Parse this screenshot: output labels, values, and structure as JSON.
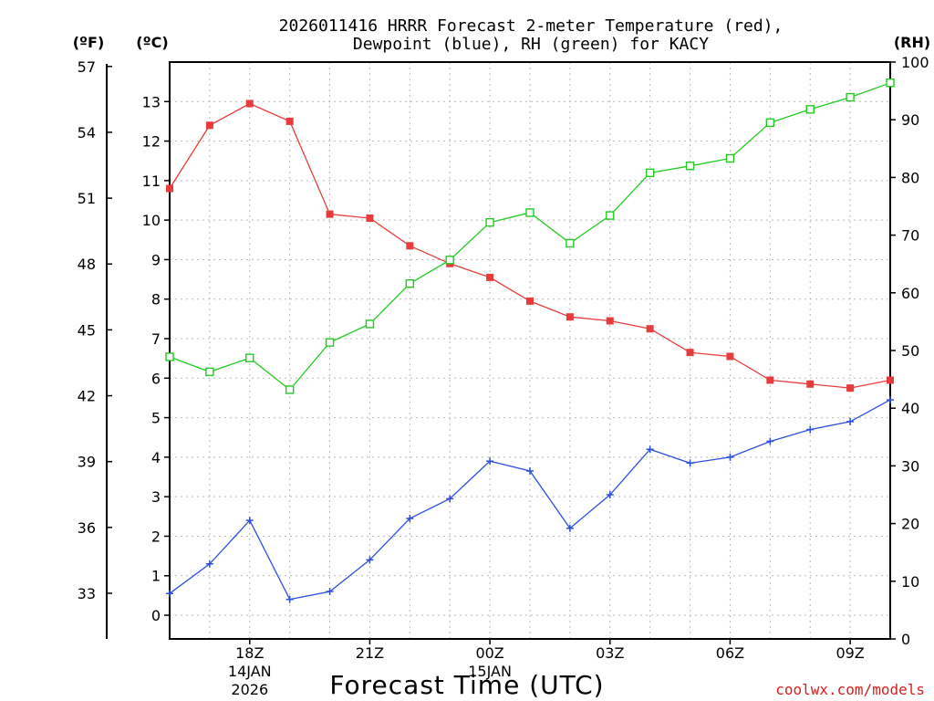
{
  "chart_data": {
    "type": "line",
    "title_line1": "2026011416 HRRR Forecast 2-meter Temperature (red),",
    "title_line2": "Dewpoint (blue), RH (green) for KACY",
    "xlabel": "Forecast Time (UTC)",
    "credit": "coolwx.com/models",
    "left_unit_f": "(ºF)",
    "left_unit_c": "(ºC)",
    "right_unit": "(RH)",
    "x_hours": [
      16,
      17,
      18,
      19,
      20,
      21,
      22,
      23,
      24,
      25,
      26,
      27,
      28,
      29,
      30,
      31,
      32,
      33,
      34
    ],
    "xlim": [
      16,
      34
    ],
    "x_ticks": [
      {
        "hour": 18,
        "label": "18Z",
        "sub1": "14JAN",
        "sub2": "2026"
      },
      {
        "hour": 21,
        "label": "21Z",
        "sub1": "",
        "sub2": ""
      },
      {
        "hour": 24,
        "label": "00Z",
        "sub1": "15JAN",
        "sub2": ""
      },
      {
        "hour": 27,
        "label": "03Z",
        "sub1": "",
        "sub2": ""
      },
      {
        "hour": 30,
        "label": "06Z",
        "sub1": "",
        "sub2": ""
      },
      {
        "hour": 33,
        "label": "09Z",
        "sub1": "",
        "sub2": ""
      }
    ],
    "celsius_axis": {
      "ylim": [
        -0.6,
        14.0
      ],
      "ticks": [
        0,
        1,
        2,
        3,
        4,
        5,
        6,
        7,
        8,
        9,
        10,
        11,
        12,
        13
      ]
    },
    "fahrenheit_axis": {
      "ticks": [
        33,
        36,
        39,
        42,
        45,
        48,
        51,
        54,
        57
      ]
    },
    "rh_axis": {
      "ylim": [
        0,
        100
      ],
      "ticks": [
        0,
        10,
        20,
        30,
        40,
        50,
        60,
        70,
        80,
        90,
        100
      ]
    },
    "series": [
      {
        "name": "Temperature",
        "axis": "celsius",
        "color": "#e83c3c",
        "marker": "filled-square",
        "values": [
          10.8,
          12.4,
          12.95,
          12.5,
          10.15,
          10.05,
          9.35,
          8.9,
          8.55,
          7.95,
          7.55,
          7.45,
          7.25,
          6.65,
          6.55,
          5.95,
          5.85,
          5.75,
          5.95
        ]
      },
      {
        "name": "Dewpoint",
        "axis": "celsius",
        "color": "#2d4ee0",
        "marker": "plus",
        "values": [
          0.55,
          1.3,
          2.4,
          0.4,
          0.6,
          1.4,
          2.45,
          2.95,
          3.9,
          3.65,
          2.2,
          3.05,
          4.2,
          3.85,
          4.0,
          4.4,
          4.7,
          4.9,
          5.45
        ]
      },
      {
        "name": "RH",
        "axis": "rh",
        "color": "#22cc22",
        "marker": "open-square",
        "values": [
          48.9,
          46.3,
          48.7,
          43.2,
          51.4,
          54.6,
          61.6,
          65.7,
          72.2,
          73.9,
          68.6,
          73.4,
          80.8,
          82.0,
          83.3,
          89.5,
          91.8,
          93.9,
          96.4
        ]
      }
    ]
  }
}
